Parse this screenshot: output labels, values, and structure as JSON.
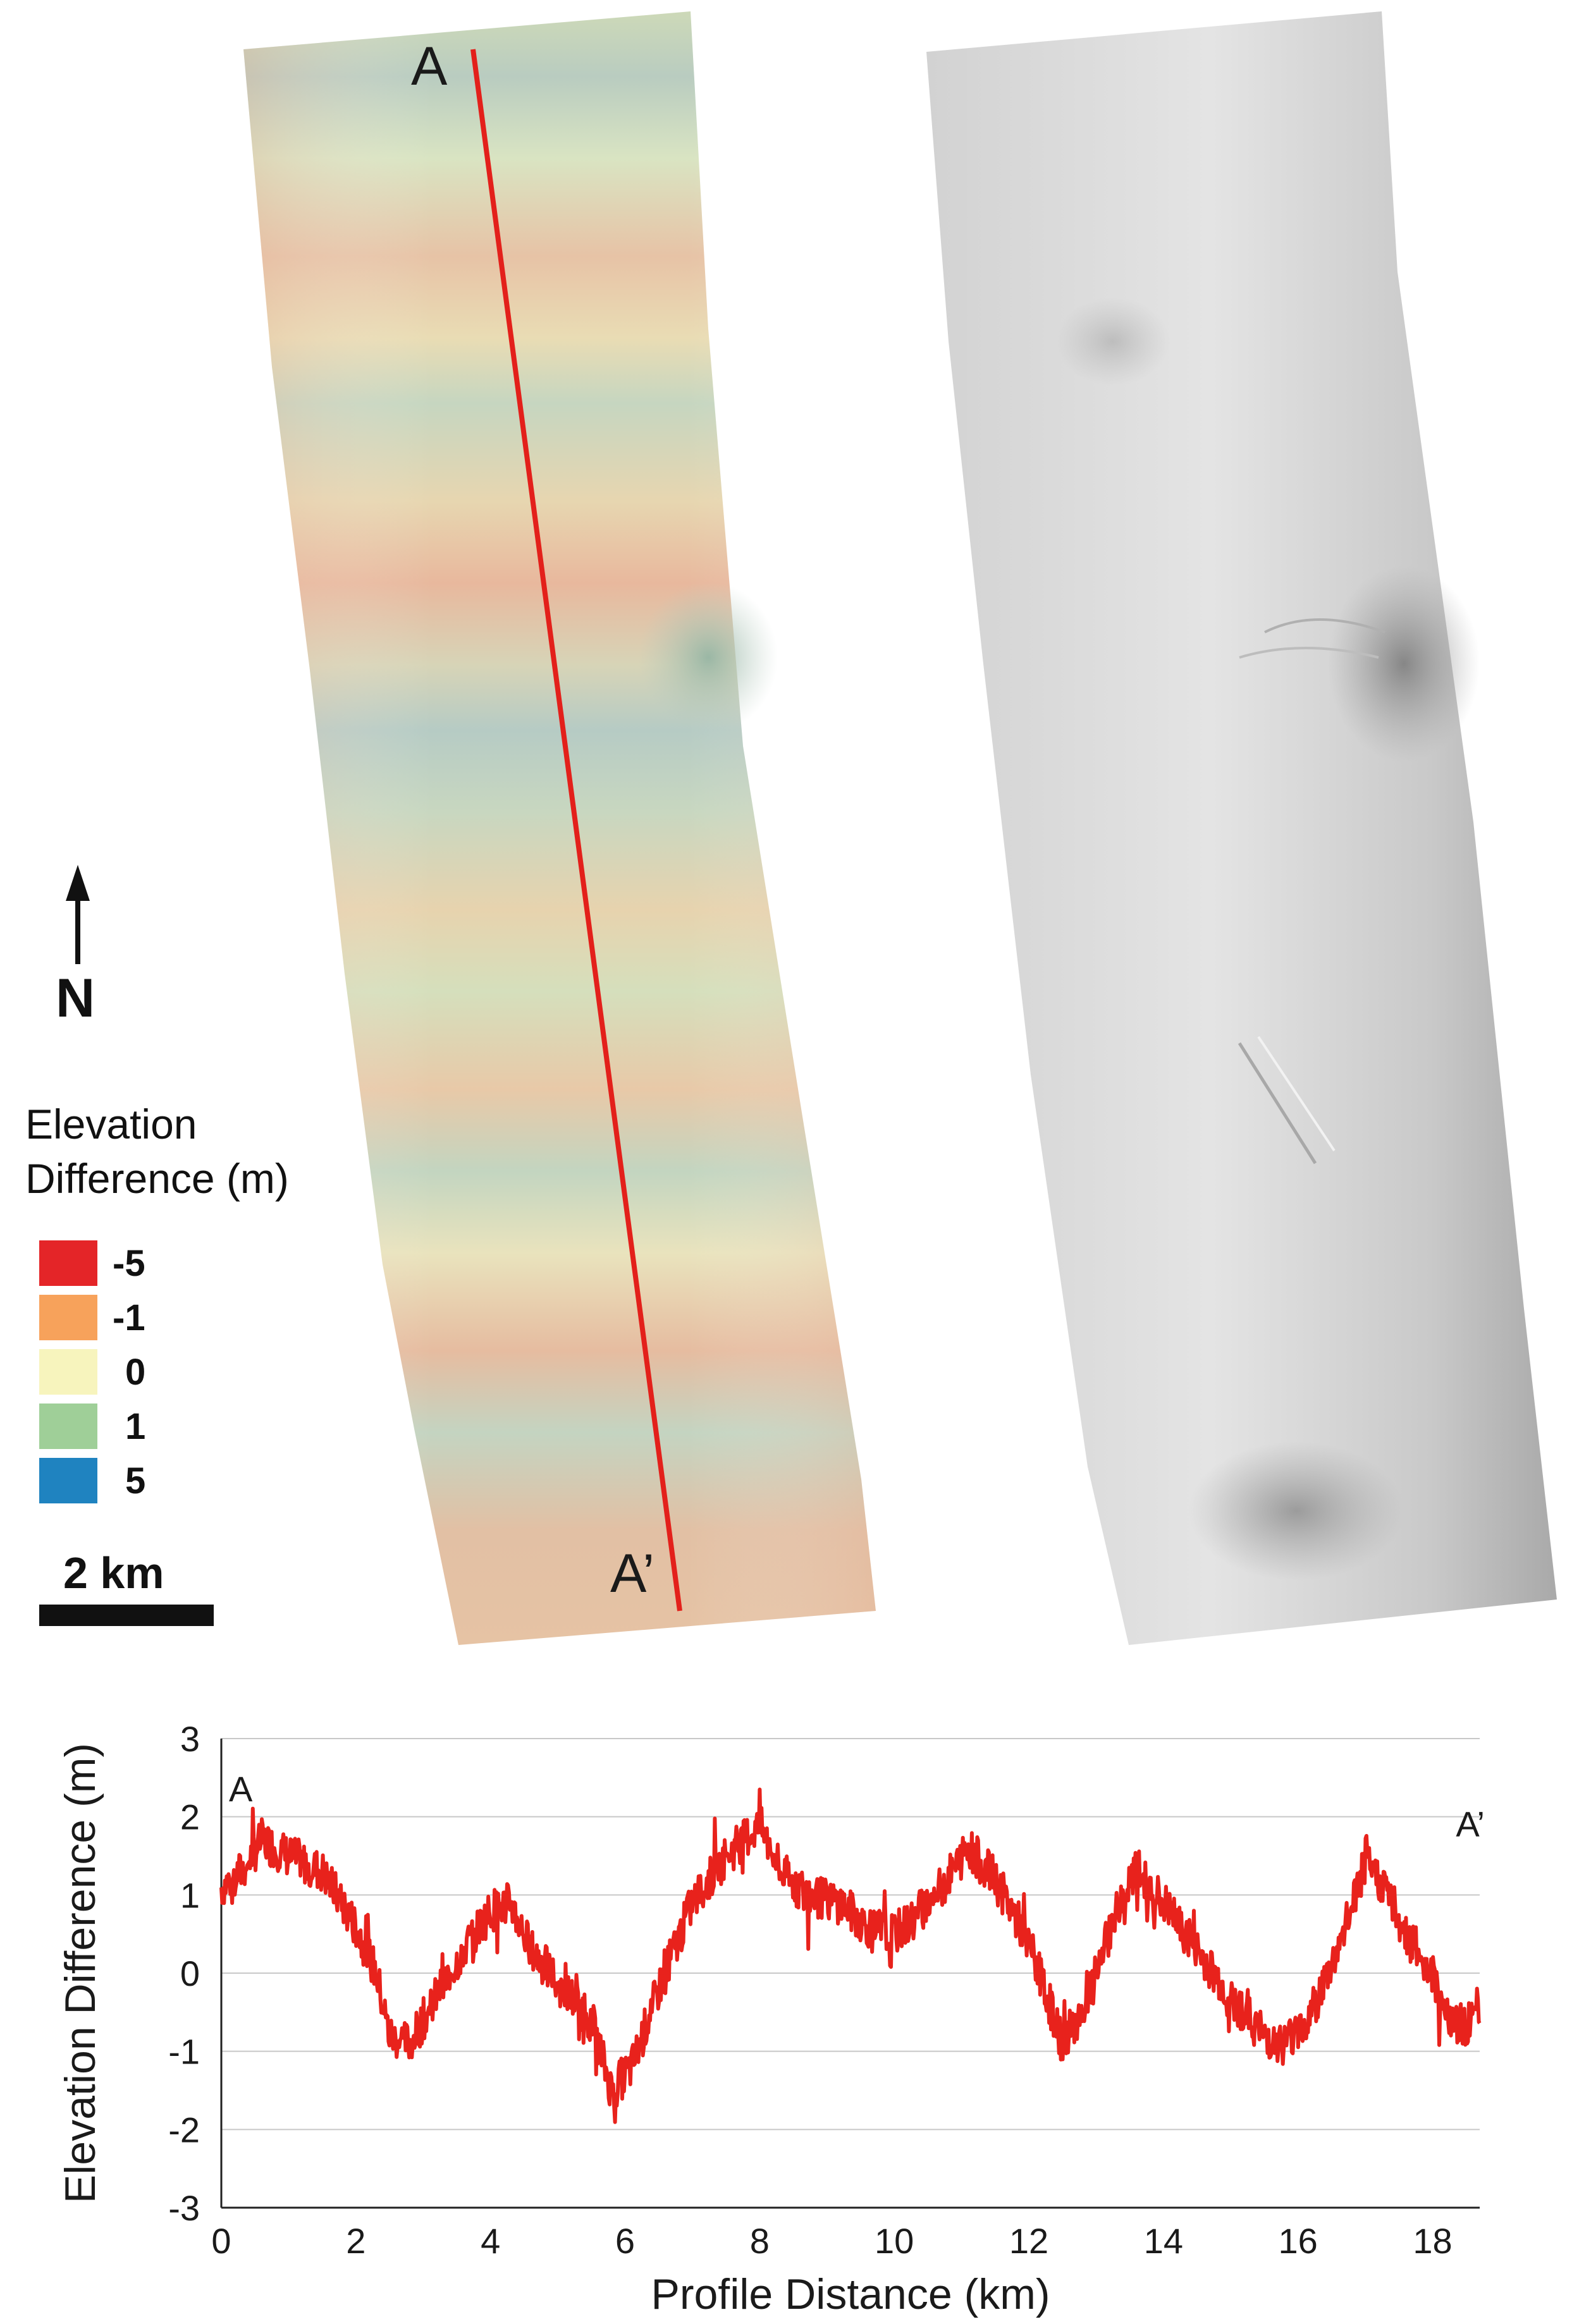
{
  "map": {
    "start_label": "A",
    "end_label": "A’",
    "north_label": "N",
    "scale_label": "2 km"
  },
  "legend": {
    "title_line1": "Elevation",
    "title_line2": "Difference (m)",
    "items": [
      {
        "label": "-5",
        "color": "#e42528"
      },
      {
        "label": "-1",
        "color": "#f7a25b"
      },
      {
        "label": "0",
        "color": "#f7f4bd"
      },
      {
        "label": "1",
        "color": "#9fcf98"
      },
      {
        "label": "5",
        "color": "#1f83c0"
      }
    ]
  },
  "chart_data": {
    "type": "line",
    "xlabel": "Profile Distance (km)",
    "ylabel": "Elevation Difference (m)",
    "xlim": [
      0,
      18.7
    ],
    "ylim": [
      -3,
      3
    ],
    "xticks": [
      0,
      2,
      4,
      6,
      8,
      10,
      12,
      14,
      16,
      18
    ],
    "yticks": [
      3,
      2,
      1,
      0,
      -1,
      -2,
      -3
    ],
    "grid": "horizontal",
    "line_color": "#e8221c",
    "start_label": "A",
    "end_label": "A’",
    "series": [
      {
        "x": [
          0,
          0.3,
          0.6,
          1.0,
          1.5,
          2.0,
          2.3,
          2.5,
          2.8,
          3.2,
          3.6,
          4.0,
          4.3,
          4.6,
          5.0,
          5.5,
          5.8,
          6.1,
          6.5,
          7.0,
          7.5,
          8.0,
          8.3,
          8.7,
          9.2,
          9.6,
          10.0,
          10.3,
          10.7,
          11.1,
          11.5,
          12.0,
          12.5,
          12.9,
          13.3,
          13.6,
          14.0,
          14.5,
          15.0,
          15.5,
          15.8,
          16.2,
          16.6,
          17.0,
          17.3,
          17.6,
          18.0,
          18.3,
          18.7
        ],
        "y": [
          1.1,
          1.3,
          1.7,
          1.5,
          1.3,
          0.6,
          0.0,
          -0.8,
          -0.9,
          -0.3,
          0.3,
          0.8,
          0.9,
          0.3,
          -0.1,
          -0.6,
          -1.5,
          -1.2,
          -0.2,
          0.9,
          1.5,
          1.9,
          1.3,
          1.0,
          0.9,
          0.6,
          0.5,
          0.7,
          1.1,
          1.6,
          1.2,
          0.4,
          -0.9,
          -0.3,
          0.8,
          1.3,
          0.9,
          0.3,
          -0.3,
          -0.8,
          -0.9,
          -0.5,
          0.3,
          1.4,
          1.1,
          0.5,
          0.0,
          -0.7,
          -0.6
        ]
      }
    ]
  }
}
